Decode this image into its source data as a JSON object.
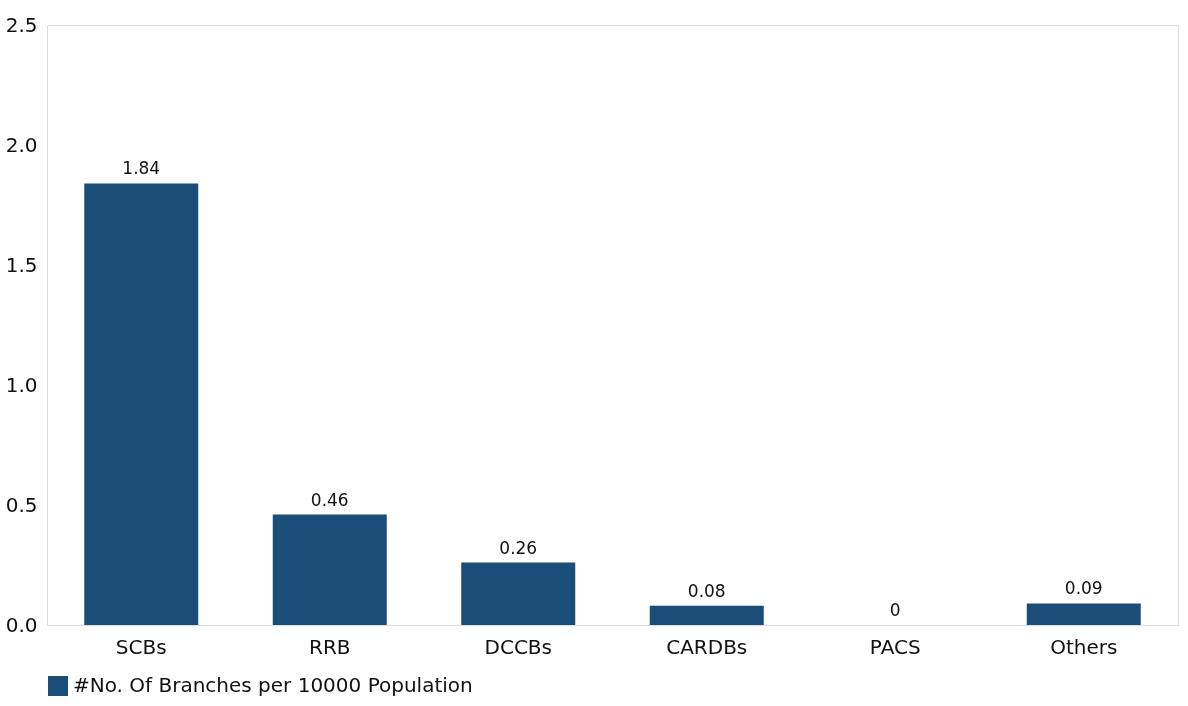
{
  "chart_data": {
    "type": "bar",
    "categories": [
      "SCBs",
      "RRB",
      "DCCBs",
      "CARDBs",
      "PACS",
      "Others"
    ],
    "series": [
      {
        "name": "#No. Of Branches per 10000 Population",
        "color": "#1a4d78",
        "values": [
          1.84,
          0.46,
          0.26,
          0.08,
          0,
          0.09
        ]
      }
    ],
    "ylim": [
      0,
      2.5
    ],
    "yticks": [
      {
        "value": 0,
        "label": "0.0"
      },
      {
        "value": 0.5,
        "label": "0.5"
      },
      {
        "value": 1,
        "label": "1.0"
      },
      {
        "value": 1.5,
        "label": "1.5"
      },
      {
        "value": 2,
        "label": "2.0"
      },
      {
        "value": 2.5,
        "label": "2.5"
      }
    ],
    "data_labels": true,
    "grid": false,
    "legend": "bottom"
  }
}
